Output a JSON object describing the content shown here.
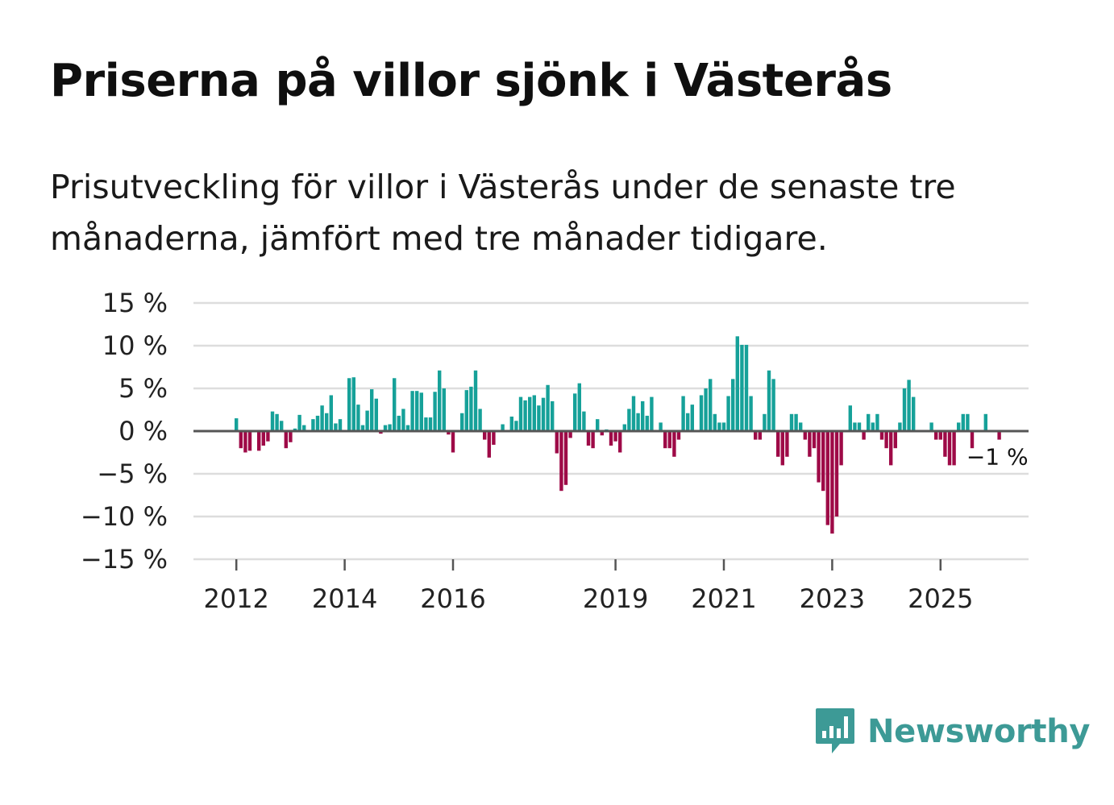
{
  "title": "Priserna på villor sjönk i Västerås",
  "subtitle": "Prisutveckling för villor i Västerås under de senaste tre månaderna, jämfört med tre månader tidigare.",
  "brand": {
    "name": "Newsworthy"
  },
  "colors": {
    "positive": "#16a199",
    "negative": "#9e0a47",
    "grid": "#dddddd",
    "zero_line": "#555555",
    "brand": "#3d9a96"
  },
  "chart_data": {
    "type": "bar",
    "title": "Priserna på villor sjönk i Västerås",
    "xlabel": "",
    "ylabel": "",
    "ylim": [
      -15,
      15
    ],
    "yticks": [
      15,
      10,
      5,
      0,
      -5,
      -10,
      -15
    ],
    "ytick_labels": [
      "15 %",
      "10 %",
      "5 %",
      "0 %",
      "−5 %",
      "−10 %",
      "−15 %"
    ],
    "start": {
      "year": 2011,
      "month": 6
    },
    "xticks": [
      2012,
      2014,
      2016,
      2019,
      2021,
      2023,
      2025
    ],
    "xtick_labels": [
      "2012",
      "2014",
      "2016",
      "2019",
      "2021",
      "2023",
      "2025"
    ],
    "end_label": "−1 %",
    "grid": true,
    "values": [
      0,
      0,
      0,
      0,
      0,
      0,
      0,
      1.5,
      -2,
      -2.5,
      -2.3,
      0,
      -2.3,
      -1.7,
      -1.2,
      2.3,
      2,
      1.2,
      -2,
      -1.3,
      0.3,
      1.9,
      0.7,
      0,
      1.4,
      1.8,
      3,
      2.1,
      4.2,
      0.9,
      1.4,
      0,
      6.2,
      6.3,
      3.1,
      0.7,
      2.4,
      4.9,
      3.8,
      -0.3,
      0.7,
      0.8,
      6.2,
      1.8,
      2.6,
      0.7,
      4.7,
      4.7,
      4.5,
      1.6,
      1.6,
      4.6,
      7.1,
      5,
      -0.4,
      -2.5,
      0,
      2.1,
      4.8,
      5.2,
      7.1,
      2.6,
      -1,
      -3.1,
      -1.6,
      0,
      0.8,
      0,
      1.7,
      1.2,
      4,
      3.6,
      4,
      4.2,
      3,
      3.9,
      5.4,
      3.5,
      -2.6,
      -7,
      -6.3,
      -0.8,
      4.4,
      5.6,
      2.3,
      -1.7,
      -2,
      1.4,
      -0.5,
      0.2,
      -1.7,
      -1.2,
      -2.5,
      0.8,
      2.6,
      4.1,
      2.1,
      3.5,
      1.8,
      4,
      0,
      1,
      -2,
      -2,
      -3,
      -1,
      4.1,
      2.1,
      3.1,
      0,
      4.2,
      5,
      6.1,
      2,
      1,
      1,
      4.1,
      6.1,
      11.1,
      10.1,
      10.1,
      4.1,
      -1,
      -1,
      2,
      7.1,
      6.1,
      -3,
      -4,
      -3,
      2,
      2,
      1,
      -1,
      -3,
      -2,
      -6,
      -7,
      -11,
      -12,
      -10,
      -4,
      0,
      3,
      1,
      1,
      -1,
      2,
      1,
      2,
      -1,
      -2,
      -4,
      -2,
      1,
      5,
      6,
      4,
      0,
      0,
      0,
      1,
      -1,
      -1,
      -3,
      -4,
      -4,
      1,
      2,
      2,
      -2,
      0,
      0,
      2,
      0,
      0,
      -1
    ]
  }
}
